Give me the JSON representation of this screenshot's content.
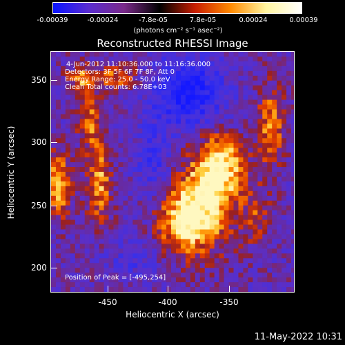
{
  "colorbar": {
    "tick_labels": [
      "-0.00039",
      "-0.00024",
      "-7.8e-05",
      "7.8e-05",
      "0.00024",
      "0.00039"
    ],
    "unit_label": "(photons cm⁻² s⁻¹ asec⁻²)",
    "colors": [
      "#0a14ff",
      "#5a2cd0",
      "#7a2a8a",
      "#000000",
      "#c81e00",
      "#ff8a00",
      "#fff5a0",
      "#ffffff"
    ]
  },
  "title": "Reconstructed RHESSI Image",
  "info": {
    "line1": "4-Jun-2012 11:10:36.000 to 11:16:36.000",
    "line2": "Detectors: 3F 5F 6F 7F 8F, Att 0",
    "line3": "Energy Range: 25.0 - 50.0 keV",
    "line4": "Clean     Total counts: 6.78E+03",
    "peak": "Position of Peak = [-495,254]"
  },
  "axes": {
    "xlabel": "Heliocentric X (arcsec)",
    "ylabel": "Heliocentric Y (arcsec)",
    "xticks": [
      "-450",
      "-400",
      "-350"
    ],
    "yticks": [
      "350",
      "300",
      "250",
      "200"
    ]
  },
  "timestamp": "11-May-2022 10:31",
  "chart_data": {
    "type": "heatmap",
    "title": "Reconstructed RHESSI Image",
    "xlabel": "Heliocentric X (arcsec)",
    "ylabel": "Heliocentric Y (arcsec)",
    "xlim": [
      -497,
      -279
    ],
    "ylim": [
      179,
      393
    ],
    "value_range": [
      -0.00039,
      0.00039
    ],
    "peak_position": [
      -495,
      254
    ],
    "grid": false
  }
}
